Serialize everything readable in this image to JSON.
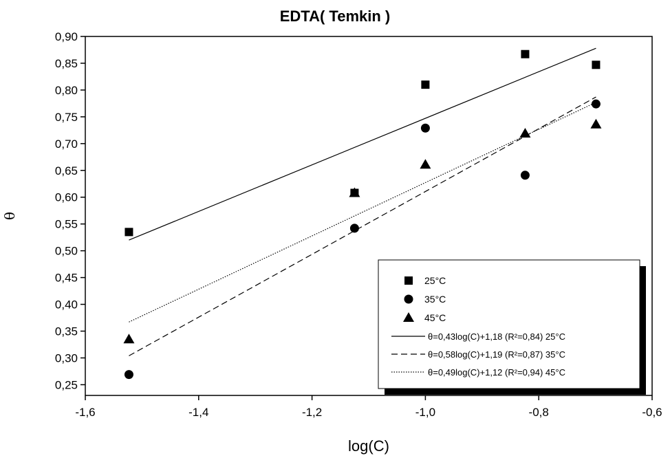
{
  "chart_data": {
    "type": "scatter",
    "title": "EDTA( Temkin )",
    "xlabel": "log(C)",
    "ylabel": "θ",
    "xlim": [
      -1.6,
      -0.6
    ],
    "ylim": [
      0.23,
      0.9
    ],
    "xticks": [
      -1.6,
      -1.4,
      -1.2,
      -1.0,
      -0.8,
      -0.6
    ],
    "xtick_labels": [
      "-1,6",
      "-1,4",
      "-1,2",
      "-1,0",
      "-0,8",
      "-0,6"
    ],
    "yticks": [
      0.25,
      0.3,
      0.35,
      0.4,
      0.45,
      0.5,
      0.55,
      0.6,
      0.65,
      0.7,
      0.75,
      0.8,
      0.85,
      0.9
    ],
    "ytick_labels": [
      "0,25",
      "0,30",
      "0,35",
      "0,40",
      "0,45",
      "0,50",
      "0,55",
      "0,60",
      "0,65",
      "0,70",
      "0,75",
      "0,80",
      "0,85",
      "0,90"
    ],
    "grid": false,
    "legend_position": "bottom-right",
    "x": [
      -1.523,
      -1.125,
      -1.0,
      -0.824,
      -0.699
    ],
    "series": [
      {
        "name": "25°C",
        "marker": "square",
        "y": [
          0.535,
          0.608,
          0.81,
          0.867,
          0.847
        ]
      },
      {
        "name": "35°C",
        "marker": "circle",
        "y": [
          0.269,
          0.542,
          0.729,
          0.641,
          0.774
        ]
      },
      {
        "name": "45°C",
        "marker": "triangle",
        "y": [
          0.335,
          0.608,
          0.661,
          0.719,
          0.736
        ]
      }
    ],
    "fits": [
      {
        "label": "θ=0,43log(C)+1,18 (R²=0,84)  25°C",
        "dash": "solid",
        "x": [
          -1.523,
          -0.699
        ],
        "y": [
          0.52,
          0.878
        ]
      },
      {
        "label": "θ=0,58log(C)+1,19 (R²=0,87) 35°C",
        "dash": "dashed",
        "x": [
          -1.523,
          -0.699
        ],
        "y": [
          0.304,
          0.787
        ]
      },
      {
        "label": "θ=0,49log(C)+1,12 (R²=0,94) 45°C",
        "dash": "dotted",
        "x": [
          -1.523,
          -0.699
        ],
        "y": [
          0.367,
          0.777
        ]
      }
    ]
  }
}
